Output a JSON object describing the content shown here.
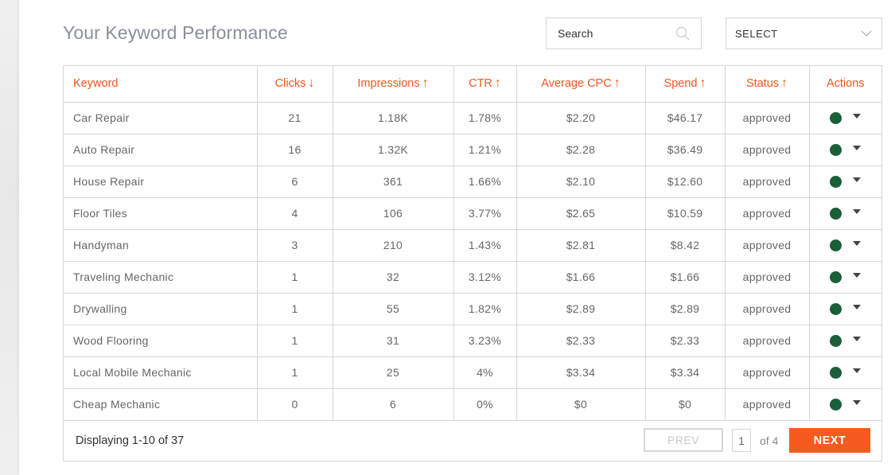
{
  "header": {
    "title": "Your Keyword Performance",
    "search_placeholder": "Search",
    "select_label": "SELECT"
  },
  "table": {
    "columns": [
      {
        "label": "Keyword",
        "arrow": ""
      },
      {
        "label": "Clicks",
        "arrow": "↓"
      },
      {
        "label": "Impressions",
        "arrow": "↑"
      },
      {
        "label": "CTR",
        "arrow": "↑"
      },
      {
        "label": "Average CPC",
        "arrow": "↑"
      },
      {
        "label": "Spend",
        "arrow": "↑"
      },
      {
        "label": "Status",
        "arrow": "↑"
      },
      {
        "label": "Actions",
        "arrow": ""
      }
    ],
    "rows": [
      {
        "keyword": "Car Repair",
        "clicks": "21",
        "impressions": "1.18K",
        "ctr": "1.78%",
        "cpc": "$2.20",
        "spend": "$46.17",
        "status": "approved"
      },
      {
        "keyword": "Auto Repair",
        "clicks": "16",
        "impressions": "1.32K",
        "ctr": "1.21%",
        "cpc": "$2.28",
        "spend": "$36.49",
        "status": "approved"
      },
      {
        "keyword": "House Repair",
        "clicks": "6",
        "impressions": "361",
        "ctr": "1.66%",
        "cpc": "$2.10",
        "spend": "$12.60",
        "status": "approved"
      },
      {
        "keyword": "Floor Tiles",
        "clicks": "4",
        "impressions": "106",
        "ctr": "3.77%",
        "cpc": "$2.65",
        "spend": "$10.59",
        "status": "approved"
      },
      {
        "keyword": "Handyman",
        "clicks": "3",
        "impressions": "210",
        "ctr": "1.43%",
        "cpc": "$2.81",
        "spend": "$8.42",
        "status": "approved"
      },
      {
        "keyword": "Traveling Mechanic",
        "clicks": "1",
        "impressions": "32",
        "ctr": "3.12%",
        "cpc": "$1.66",
        "spend": "$1.66",
        "status": "approved"
      },
      {
        "keyword": "Drywalling",
        "clicks": "1",
        "impressions": "55",
        "ctr": "1.82%",
        "cpc": "$2.89",
        "spend": "$2.89",
        "status": "approved"
      },
      {
        "keyword": "Wood Flooring",
        "clicks": "1",
        "impressions": "31",
        "ctr": "3.23%",
        "cpc": "$2.33",
        "spend": "$2.33",
        "status": "approved"
      },
      {
        "keyword": "Local Mobile Mechanic",
        "clicks": "1",
        "impressions": "25",
        "ctr": "4%",
        "cpc": "$3.34",
        "spend": "$3.34",
        "status": "approved"
      },
      {
        "keyword": "Cheap Mechanic",
        "clicks": "0",
        "impressions": "6",
        "ctr": "0%",
        "cpc": "$0",
        "spend": "$0",
        "status": "approved"
      }
    ]
  },
  "footer": {
    "display_text": "Displaying 1-10 of 37",
    "prev_label": "PREV",
    "page_value": "1",
    "of_text": "of 4",
    "next_label": "NEXT"
  },
  "colors": {
    "accent": "#f55a1f",
    "status_dot": "#1a5e3a",
    "header_text": "#f0561f"
  }
}
